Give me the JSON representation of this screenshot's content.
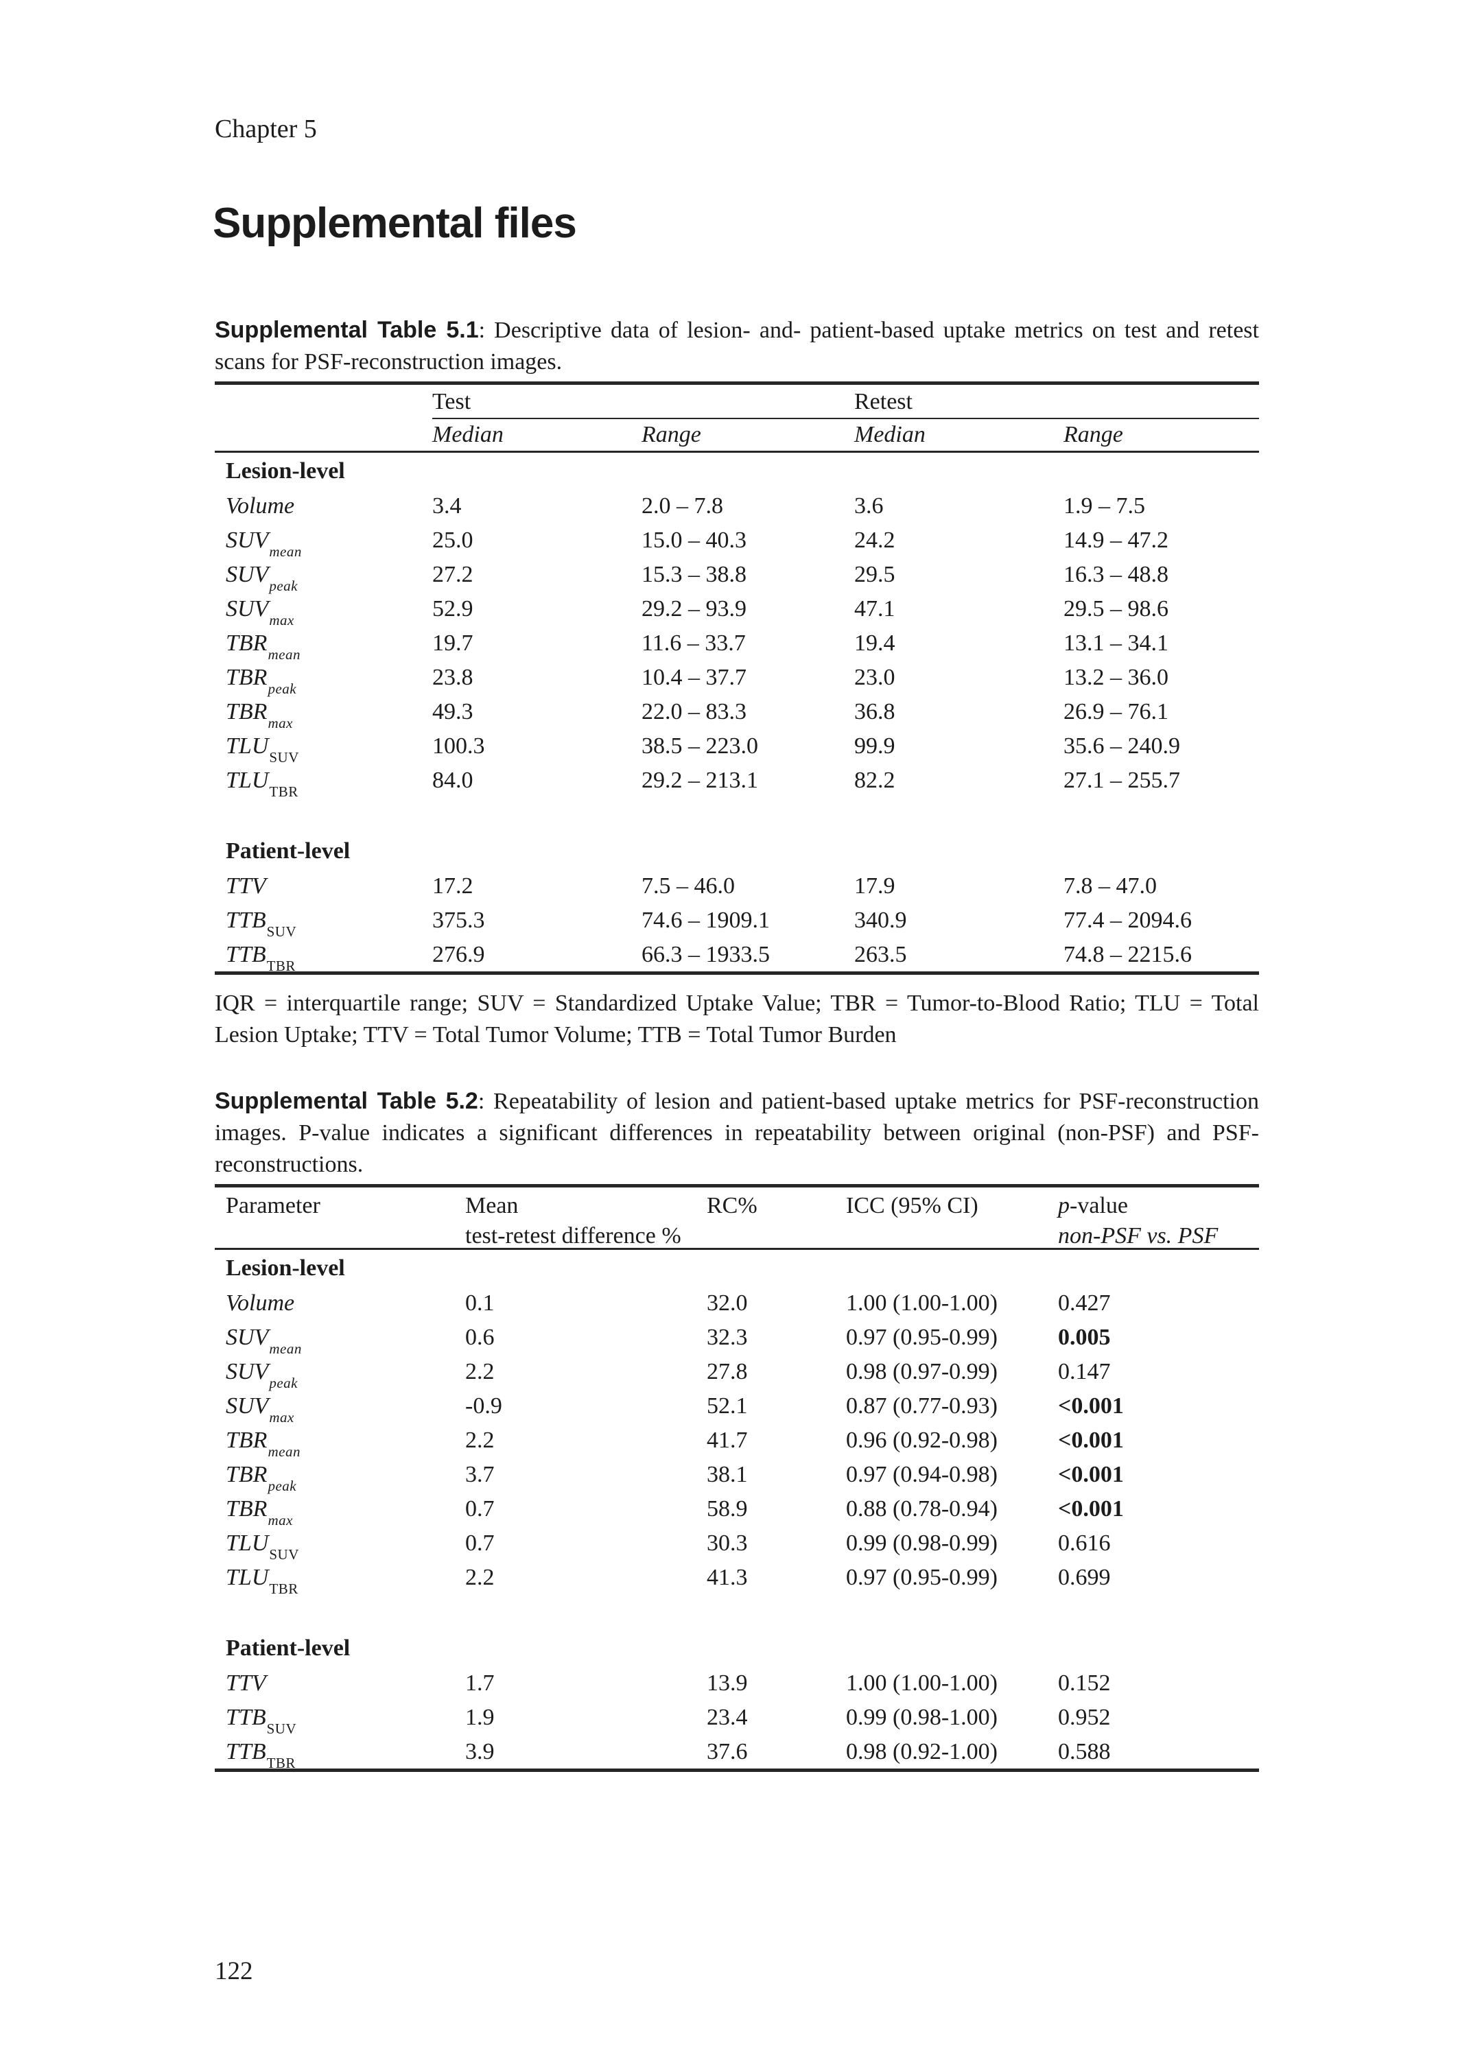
{
  "page": {
    "chapter": "Chapter 5",
    "title": "Supplemental files",
    "page_number": "122"
  },
  "table1": {
    "caption_label": "Supplemental Table 5.1",
    "caption_text": ": Descriptive data of lesion- and- patient-based uptake metrics on test and retest scans for PSF-reconstruction images.",
    "group_headers": [
      "Test",
      "Retest"
    ],
    "sub_headers": [
      "Median",
      "Range",
      "Median",
      "Range"
    ],
    "sections": [
      {
        "name": "Lesion-level",
        "rows": [
          {
            "label": "Volume",
            "sub": "",
            "values": [
              "3.4",
              "2.0 – 7.8",
              "3.6",
              "1.9 – 7.5"
            ]
          },
          {
            "label": "SUV",
            "sub": "mean",
            "values": [
              "25.0",
              "15.0 – 40.3",
              "24.2",
              "14.9 – 47.2"
            ]
          },
          {
            "label": "SUV",
            "sub": "peak",
            "values": [
              "27.2",
              "15.3 – 38.8",
              "29.5",
              "16.3 – 48.8"
            ]
          },
          {
            "label": "SUV",
            "sub": "max",
            "values": [
              "52.9",
              "29.2 – 93.9",
              "47.1",
              "29.5 – 98.6"
            ]
          },
          {
            "label": "TBR",
            "sub": "mean",
            "values": [
              "19.7",
              "11.6 – 33.7",
              "19.4",
              "13.1 – 34.1"
            ]
          },
          {
            "label": "TBR",
            "sub": "peak",
            "values": [
              "23.8",
              "10.4 – 37.7",
              "23.0",
              "13.2 – 36.0"
            ]
          },
          {
            "label": "TBR",
            "sub": "max",
            "values": [
              "49.3",
              "22.0 – 83.3",
              "36.8",
              "26.9 – 76.1"
            ]
          },
          {
            "label": "TLU",
            "sub": "SUV",
            "values": [
              "100.3",
              "38.5 – 223.0",
              "99.9",
              "35.6 – 240.9"
            ]
          },
          {
            "label": "TLU",
            "sub": "TBR",
            "values": [
              "84.0",
              "29.2 – 213.1",
              "82.2",
              "27.1 – 255.7"
            ]
          }
        ]
      },
      {
        "name": "Patient-level",
        "rows": [
          {
            "label": "TTV",
            "sub": "",
            "values": [
              "17.2",
              "7.5 – 46.0",
              "17.9",
              "7.8 – 47.0"
            ]
          },
          {
            "label": "TTB",
            "sub": "SUV",
            "values": [
              "375.3",
              "74.6 – 1909.1",
              "340.9",
              "77.4 – 2094.6"
            ]
          },
          {
            "label": "TTB",
            "sub": "TBR",
            "values": [
              "276.9",
              "66.3 – 1933.5",
              "263.5",
              "74.8 – 2215.6"
            ]
          }
        ]
      }
    ],
    "footnote": "IQR = interquartile range; SUV = Standardized Uptake Value; TBR = Tumor-to-Blood Ratio; TLU = Total Lesion Uptake; TTV = Total Tumor Volume; TTB = Total Tumor Burden"
  },
  "table2": {
    "caption_label": "Supplemental Table 5.2",
    "caption_text": ": Repeatability of lesion and patient-based uptake metrics for PSF-reconstruction images. P-value indicates a significant differences in repeatability between original (non-PSF) and PSF-reconstructions.",
    "headers": {
      "parameter": "Parameter",
      "mean_line1": "Mean",
      "mean_line2": "test-retest difference %",
      "rc": "RC%",
      "icc": "ICC (95% CI)",
      "p_italic": "p",
      "p_rest": "-value",
      "p_line2": "non-PSF vs. PSF"
    },
    "sections": [
      {
        "name": "Lesion-level",
        "rows": [
          {
            "label": "Volume",
            "sub": "",
            "values": [
              "0.1",
              "32.0",
              "1.00 (1.00-1.00)",
              "0.427"
            ],
            "p_bold": false
          },
          {
            "label": "SUV",
            "sub": "mean",
            "values": [
              "0.6",
              "32.3",
              "0.97 (0.95-0.99)",
              "0.005"
            ],
            "p_bold": true
          },
          {
            "label": "SUV",
            "sub": "peak",
            "values": [
              "2.2",
              "27.8",
              "0.98 (0.97-0.99)",
              "0.147"
            ],
            "p_bold": false
          },
          {
            "label": "SUV",
            "sub": "max",
            "values": [
              "-0.9",
              "52.1",
              "0.87 (0.77-0.93)",
              "<0.001"
            ],
            "p_bold": true
          },
          {
            "label": "TBR",
            "sub": "mean",
            "values": [
              "2.2",
              "41.7",
              "0.96 (0.92-0.98)",
              "<0.001"
            ],
            "p_bold": true
          },
          {
            "label": "TBR",
            "sub": "peak",
            "values": [
              "3.7",
              "38.1",
              "0.97 (0.94-0.98)",
              "<0.001"
            ],
            "p_bold": true
          },
          {
            "label": "TBR",
            "sub": "max",
            "values": [
              "0.7",
              "58.9",
              "0.88 (0.78-0.94)",
              "<0.001"
            ],
            "p_bold": true
          },
          {
            "label": "TLU",
            "sub": "SUV",
            "values": [
              "0.7",
              "30.3",
              "0.99 (0.98-0.99)",
              "0.616"
            ],
            "p_bold": false
          },
          {
            "label": "TLU",
            "sub": "TBR",
            "values": [
              "2.2",
              "41.3",
              "0.97 (0.95-0.99)",
              "0.699"
            ],
            "p_bold": false
          }
        ]
      },
      {
        "name": "Patient-level",
        "rows": [
          {
            "label": "TTV",
            "sub": "",
            "values": [
              "1.7",
              "13.9",
              "1.00 (1.00-1.00)",
              "0.152"
            ],
            "p_bold": false
          },
          {
            "label": "TTB",
            "sub": "SUV",
            "values": [
              "1.9",
              "23.4",
              "0.99 (0.98-1.00)",
              "0.952"
            ],
            "p_bold": false
          },
          {
            "label": "TTB",
            "sub": "TBR",
            "values": [
              "3.9",
              "37.6",
              "0.98 (0.92-1.00)",
              "0.588"
            ],
            "p_bold": false
          }
        ]
      }
    ]
  }
}
